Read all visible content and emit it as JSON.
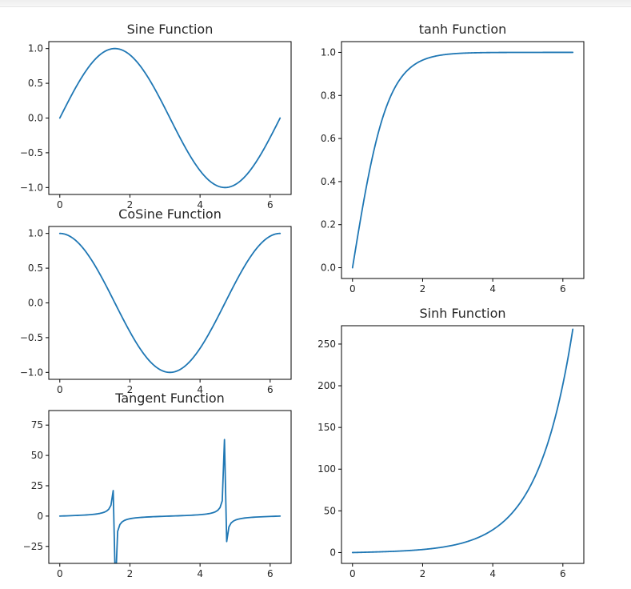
{
  "chart_data": [
    {
      "type": "line",
      "id": "sine",
      "title": "Sine Function",
      "function": "sin",
      "x_range": [
        0,
        6.2832
      ],
      "xlim": [
        -0.3142,
        6.5973
      ],
      "ylim": [
        -1.1,
        1.1
      ],
      "xticks": [
        0,
        2,
        4,
        6
      ],
      "xtick_labels": [
        "0",
        "2",
        "4",
        "6"
      ],
      "yticks": [
        1.0,
        0.5,
        0.0,
        -0.5,
        -1.0
      ],
      "ytick_labels": [
        "1.0",
        "0.5",
        "0.0",
        "−0.5",
        "−1.0"
      ],
      "color": "#1f77b4"
    },
    {
      "type": "line",
      "id": "cosine",
      "title": "CoSine Function",
      "function": "cos",
      "x_range": [
        0,
        6.2832
      ],
      "xlim": [
        -0.3142,
        6.5973
      ],
      "ylim": [
        -1.1,
        1.1
      ],
      "xticks": [
        0,
        2,
        4,
        6
      ],
      "xtick_labels": [
        "0",
        "2",
        "4",
        "6"
      ],
      "yticks": [
        1.0,
        0.5,
        0.0,
        -0.5,
        -1.0
      ],
      "ytick_labels": [
        "1.0",
        "0.5",
        "0.0",
        "−0.5",
        "−1.0"
      ],
      "color": "#1f77b4"
    },
    {
      "type": "line",
      "id": "tangent",
      "title": "Tangent Function",
      "function": "tan",
      "x_range": [
        0,
        6.2832
      ],
      "xlim": [
        -0.3142,
        6.5973
      ],
      "ylim": [
        -39,
        87
      ],
      "xticks": [
        0,
        2,
        4,
        6
      ],
      "xtick_labels": [
        "0",
        "2",
        "4",
        "6"
      ],
      "yticks": [
        75,
        50,
        25,
        0,
        -25
      ],
      "ytick_labels": [
        "75",
        "50",
        "25",
        "0",
        "−25"
      ],
      "sample_count": 100,
      "color": "#1f77b4"
    },
    {
      "type": "line",
      "id": "tanh",
      "title": "tanh Function",
      "function": "tanh",
      "x_range": [
        0,
        6.2832
      ],
      "xlim": [
        -0.3142,
        6.5973
      ],
      "ylim": [
        -0.05,
        1.05
      ],
      "xticks": [
        0,
        2,
        4,
        6
      ],
      "xtick_labels": [
        "0",
        "2",
        "4",
        "6"
      ],
      "yticks": [
        1.0,
        0.8,
        0.6,
        0.4,
        0.2,
        0.0
      ],
      "ytick_labels": [
        "1.0",
        "0.8",
        "0.6",
        "0.4",
        "0.2",
        "0.0"
      ],
      "color": "#1f77b4"
    },
    {
      "type": "line",
      "id": "sinh",
      "title": "Sinh Function",
      "function": "sinh",
      "x_range": [
        0,
        6.2832
      ],
      "xlim": [
        -0.3142,
        6.5973
      ],
      "ylim": [
        -13,
        272
      ],
      "xticks": [
        0,
        2,
        4,
        6
      ],
      "xtick_labels": [
        "0",
        "2",
        "4",
        "6"
      ],
      "yticks": [
        250,
        200,
        150,
        100,
        50,
        0
      ],
      "ytick_labels": [
        "250",
        "200",
        "150",
        "100",
        "50",
        "0"
      ],
      "color": "#1f77b4"
    }
  ]
}
